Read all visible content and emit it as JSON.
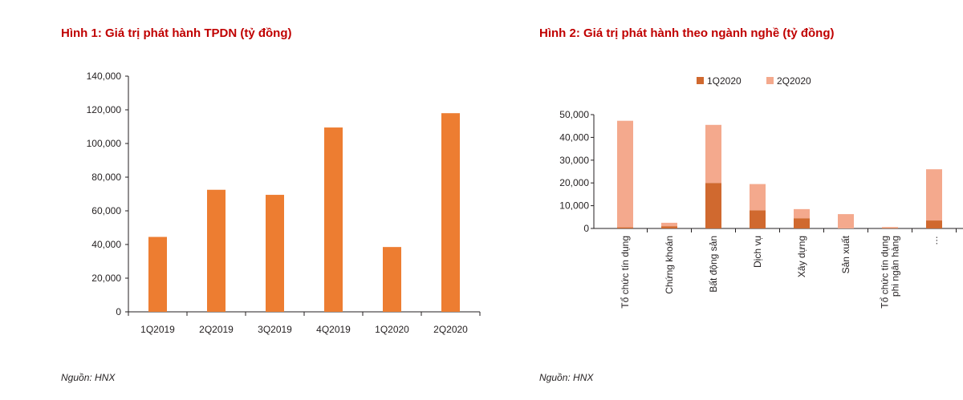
{
  "chart1": {
    "title": "Hình 1: Giá trị phát hành TPDN (tỷ đồng)",
    "source": "Nguồn: HNX",
    "colors": {
      "bar": "#ed7d31"
    },
    "chart_data": {
      "type": "bar",
      "title": "Hình 1: Giá trị phát hành TPDN (tỷ đồng)",
      "categories": [
        "1Q2019",
        "2Q2019",
        "3Q2019",
        "4Q2019",
        "1Q2020",
        "2Q2020"
      ],
      "values": [
        44500,
        72500,
        69500,
        109500,
        38500,
        118000
      ],
      "ylim": [
        0,
        140000
      ],
      "yticks": [
        0,
        20000,
        40000,
        60000,
        80000,
        100000,
        120000,
        140000
      ],
      "ytick_labels": [
        "0",
        "20,000",
        "40,000",
        "60,000",
        "80,000",
        "100,000",
        "120,000",
        "140,000"
      ],
      "grid": false,
      "legend": "none"
    }
  },
  "chart2": {
    "title": "Hình 2: Giá trị phát hành theo ngành nghề (tỷ đồng)",
    "source": "Nguồn: HNX",
    "colors": {
      "1Q2020": "#d0692f",
      "2Q2020": "#f4a98d"
    },
    "chart_data": {
      "type": "bar",
      "stacked": true,
      "title": "Hình 2: Giá trị phát hành theo ngành nghề (tỷ đồng)",
      "categories": [
        "Tổ chức tín dụng",
        "Chứng khoán",
        "Bất động sản",
        "Dịch vụ",
        "Xây dựng",
        "Sản xuất",
        "Tổ chức tín dụng\nphi ngân hàng",
        "…"
      ],
      "series": [
        {
          "name": "1Q2020",
          "values": [
            500,
            1000,
            20000,
            8000,
            4500,
            0,
            200,
            3500
          ]
        },
        {
          "name": "2Q2020",
          "values": [
            46800,
            1500,
            25500,
            11500,
            4000,
            6300,
            400,
            22500
          ]
        }
      ],
      "ylim": [
        0,
        50000
      ],
      "yticks": [
        0,
        10000,
        20000,
        30000,
        40000,
        50000
      ],
      "ytick_labels": [
        "0",
        "10,000",
        "20,000",
        "30,000",
        "40,000",
        "50,000"
      ],
      "grid": false,
      "legend": "top"
    }
  }
}
